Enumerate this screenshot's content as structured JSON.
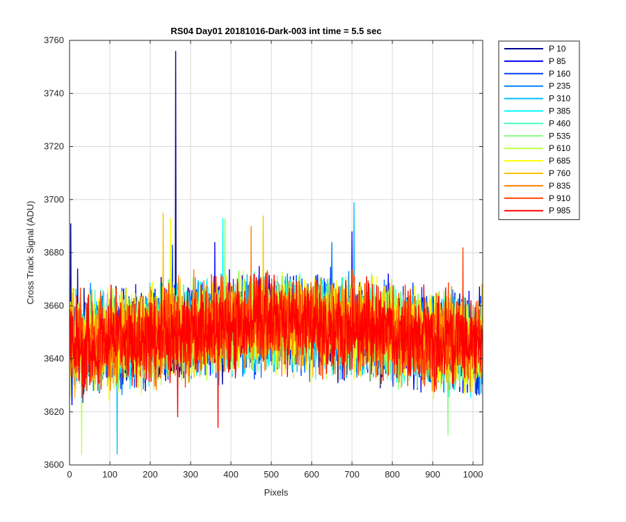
{
  "chart_data": {
    "type": "line",
    "title": "RS04 Day01 20181016-Dark-003 int time = 5.5 sec",
    "xlabel": "Pixels",
    "ylabel": "Cross Track Signal (ADU)",
    "xlim": [
      0,
      1024
    ],
    "ylim": [
      3600,
      3760
    ],
    "xticks": [
      0,
      100,
      200,
      300,
      400,
      500,
      600,
      700,
      800,
      900,
      1000
    ],
    "yticks": [
      3600,
      3620,
      3640,
      3660,
      3680,
      3700,
      3720,
      3740,
      3760
    ],
    "xtick_labels": [
      "0",
      "100",
      "200",
      "300",
      "400",
      "500",
      "600",
      "700",
      "800",
      "900",
      "1000"
    ],
    "ytick_labels": [
      "3600",
      "3620",
      "3640",
      "3660",
      "3680",
      "3700",
      "3720",
      "3740",
      "3760"
    ],
    "grid": true,
    "legend_position": "outside-top-right",
    "series": [
      {
        "name": "P 10",
        "color": "#00008f",
        "center": 3645,
        "amplitude": 14,
        "spikes": [
          [
            263,
            3756
          ],
          [
            3,
            3691
          ],
          [
            20,
            3674
          ]
        ]
      },
      {
        "name": "P 85",
        "color": "#0000ff",
        "center": 3645,
        "amplitude": 14,
        "spikes": [
          [
            360,
            3684
          ],
          [
            700,
            3688
          ]
        ]
      },
      {
        "name": "P 160",
        "color": "#0040ff",
        "center": 3645,
        "amplitude": 14,
        "spikes": [
          [
            255,
            3683
          ]
        ]
      },
      {
        "name": "P 235",
        "color": "#0080ff",
        "center": 3645,
        "amplitude": 14,
        "spikes": [
          [
            650,
            3684
          ]
        ]
      },
      {
        "name": "P 310",
        "color": "#00bfff",
        "center": 3645,
        "amplitude": 14,
        "spikes": [
          [
            705,
            3699
          ],
          [
            118,
            3604
          ]
        ]
      },
      {
        "name": "P 385",
        "color": "#00ffff",
        "center": 3645,
        "amplitude": 14,
        "spikes": [
          [
            380,
            3693
          ]
        ]
      },
      {
        "name": "P 460",
        "color": "#40ffbf",
        "center": 3645,
        "amplitude": 14,
        "spikes": []
      },
      {
        "name": "P 535",
        "color": "#80ff80",
        "center": 3645,
        "amplitude": 14,
        "spikes": [
          [
            385,
            3693
          ],
          [
            938,
            3611
          ]
        ]
      },
      {
        "name": "P 610",
        "color": "#bfff40",
        "center": 3645,
        "amplitude": 14,
        "spikes": [
          [
            30,
            3604
          ]
        ]
      },
      {
        "name": "P 685",
        "color": "#ffff00",
        "center": 3645,
        "amplitude": 14,
        "spikes": [
          [
            250,
            3693
          ]
        ]
      },
      {
        "name": "P 760",
        "color": "#ffbf00",
        "center": 3645,
        "amplitude": 14,
        "spikes": [
          [
            232,
            3695
          ],
          [
            480,
            3694
          ]
        ]
      },
      {
        "name": "P 835",
        "color": "#ff8000",
        "center": 3645,
        "amplitude": 14,
        "spikes": [
          [
            450,
            3690
          ]
        ]
      },
      {
        "name": "P 910",
        "color": "#ff4000",
        "center": 3645,
        "amplitude": 14,
        "spikes": [
          [
            975,
            3682
          ]
        ]
      },
      {
        "name": "P 985",
        "color": "#ff0000",
        "center": 3645,
        "amplitude": 14,
        "spikes": [
          [
            268,
            3618
          ],
          [
            368,
            3614
          ]
        ]
      }
    ]
  }
}
